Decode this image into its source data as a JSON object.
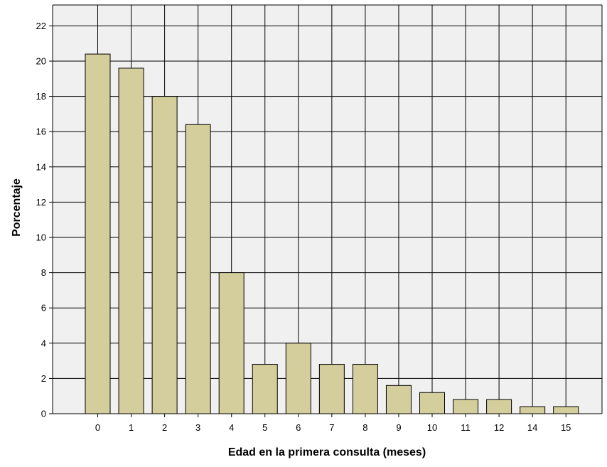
{
  "chart_data": {
    "type": "bar",
    "title": "",
    "xlabel": "Edad en la primera consulta (meses)",
    "ylabel": "Porcentaje",
    "categories": [
      "0",
      "1",
      "2",
      "3",
      "4",
      "5",
      "6",
      "7",
      "8",
      "9",
      "10",
      "11",
      "12",
      "14",
      "15"
    ],
    "values": [
      20.4,
      19.6,
      18.0,
      16.4,
      8.0,
      2.8,
      4.0,
      2.8,
      2.8,
      1.6,
      1.2,
      0.8,
      0.8,
      0.4,
      0.4
    ],
    "ylim": [
      0,
      23
    ],
    "yticks": [
      "0",
      "2",
      "4",
      "6",
      "8",
      "10",
      "12",
      "14",
      "16",
      "18",
      "20",
      "22"
    ],
    "grid": true,
    "legend": "none",
    "colors": {
      "bar_fill": "#d3ce9b",
      "bar_stroke": "#000000",
      "plot_background": "#f0f0f0",
      "grid": "#000000"
    }
  }
}
